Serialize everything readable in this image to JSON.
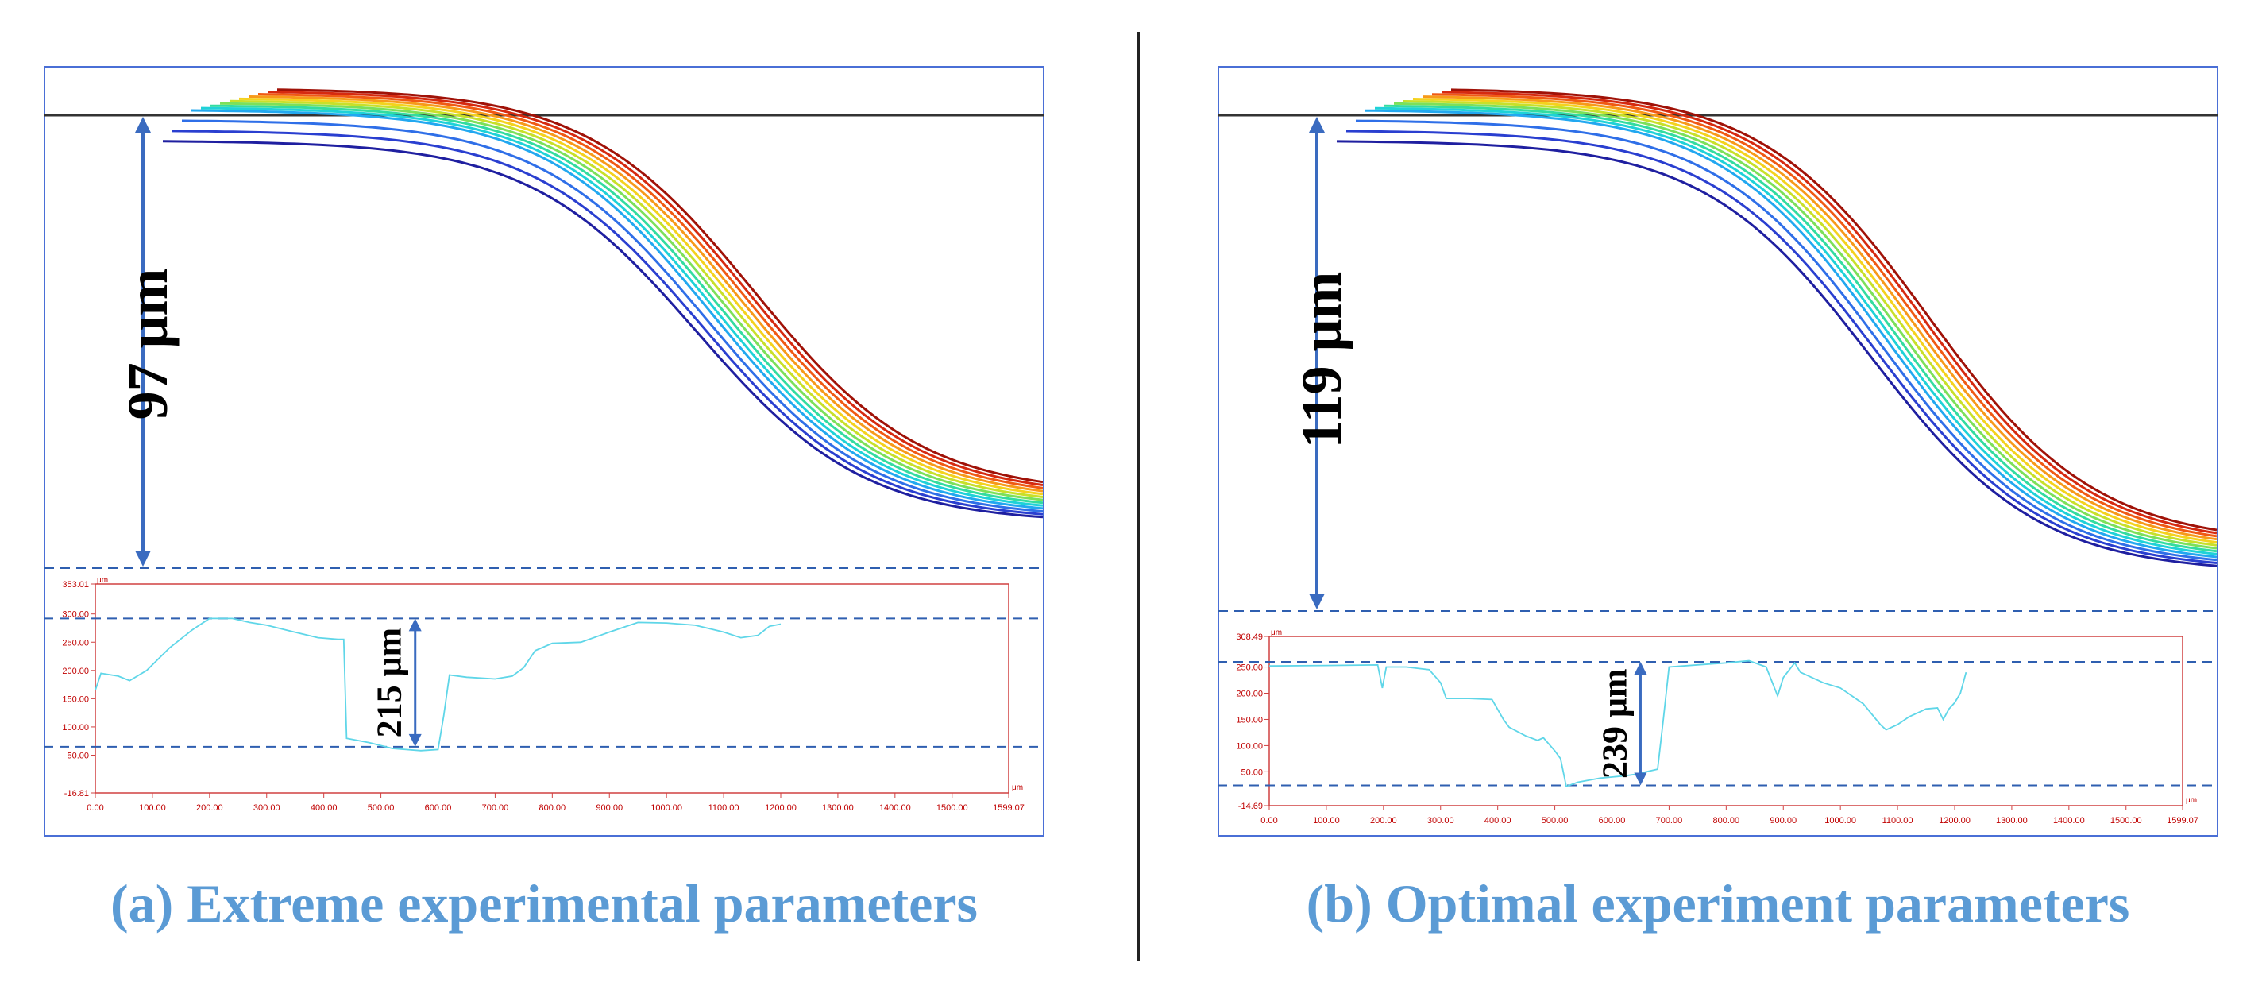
{
  "colors": {
    "frame": "#4a6fd6",
    "axis": "#d04040",
    "profile": "#5fd6e8",
    "dash": "#2f5fb0",
    "arrow": "#3a6bc0",
    "caption": "#5b9bd5"
  },
  "panels": [
    {
      "id": "a",
      "caption": "(a) Extreme experimental parameters",
      "depth_label": "97 μm",
      "depth_value": 97,
      "chart_data": {
        "type": "line",
        "xlabel": "μm",
        "ylabel": "μm",
        "xlim": [
          0,
          1599.07
        ],
        "ylim": [
          -16.81,
          353.01
        ],
        "x_ticks": [
          "0.00",
          "100.00",
          "200.00",
          "300.00",
          "400.00",
          "500.00",
          "600.00",
          "700.00",
          "800.00",
          "900.00",
          "1000.00",
          "1100.00",
          "1200.00",
          "1300.00",
          "1400.00",
          "1500.00",
          "1599.07"
        ],
        "y_ticks": [
          "353.01",
          "300.00",
          "250.00",
          "200.00",
          "150.00",
          "100.00",
          "50.00",
          "-16.81"
        ],
        "upper_dash": 292,
        "lower_dash": 65,
        "height_label": "215 μm",
        "height_value": 215,
        "profile": [
          [
            0,
            165
          ],
          [
            10,
            195
          ],
          [
            40,
            190
          ],
          [
            60,
            182
          ],
          [
            90,
            200
          ],
          [
            130,
            240
          ],
          [
            170,
            272
          ],
          [
            200,
            292
          ],
          [
            240,
            292
          ],
          [
            270,
            285
          ],
          [
            300,
            280
          ],
          [
            340,
            270
          ],
          [
            390,
            258
          ],
          [
            425,
            255
          ],
          [
            435,
            255
          ],
          [
            440,
            80
          ],
          [
            480,
            72
          ],
          [
            520,
            62
          ],
          [
            570,
            58
          ],
          [
            600,
            60
          ],
          [
            610,
            120
          ],
          [
            620,
            192
          ],
          [
            650,
            188
          ],
          [
            700,
            185
          ],
          [
            730,
            190
          ],
          [
            750,
            205
          ],
          [
            770,
            235
          ],
          [
            800,
            248
          ],
          [
            850,
            250
          ],
          [
            900,
            268
          ],
          [
            950,
            285
          ],
          [
            1000,
            284
          ],
          [
            1050,
            280
          ],
          [
            1100,
            268
          ],
          [
            1130,
            258
          ],
          [
            1160,
            262
          ],
          [
            1180,
            278
          ],
          [
            1200,
            282
          ]
        ]
      }
    },
    {
      "id": "b",
      "caption": "(b) Optimal experiment parameters",
      "depth_label": "119 μm",
      "depth_value": 119,
      "chart_data": {
        "type": "line",
        "xlabel": "μm",
        "ylabel": "μm",
        "xlim": [
          0,
          1599.07
        ],
        "ylim": [
          -14.69,
          308.49
        ],
        "x_ticks": [
          "0.00",
          "100.00",
          "200.00",
          "300.00",
          "400.00",
          "500.00",
          "600.00",
          "700.00",
          "800.00",
          "900.00",
          "1000.00",
          "1100.00",
          "1200.00",
          "1300.00",
          "1400.00",
          "1500.00",
          "1599.07"
        ],
        "y_ticks": [
          "308.49",
          "250.00",
          "200.00",
          "150.00",
          "100.00",
          "50.00",
          "-14.69"
        ],
        "upper_dash": 260,
        "lower_dash": 24,
        "height_label": "239 μm",
        "height_value": 239,
        "profile": [
          [
            0,
            252
          ],
          [
            100,
            253
          ],
          [
            190,
            254
          ],
          [
            198,
            210
          ],
          [
            205,
            250
          ],
          [
            240,
            250
          ],
          [
            280,
            245
          ],
          [
            300,
            220
          ],
          [
            310,
            190
          ],
          [
            350,
            190
          ],
          [
            390,
            188
          ],
          [
            410,
            150
          ],
          [
            420,
            135
          ],
          [
            450,
            118
          ],
          [
            470,
            110
          ],
          [
            480,
            115
          ],
          [
            500,
            90
          ],
          [
            510,
            75
          ],
          [
            520,
            22
          ],
          [
            540,
            30
          ],
          [
            580,
            38
          ],
          [
            620,
            42
          ],
          [
            640,
            45
          ],
          [
            660,
            50
          ],
          [
            680,
            55
          ],
          [
            690,
            150
          ],
          [
            700,
            250
          ],
          [
            760,
            255
          ],
          [
            800,
            258
          ],
          [
            840,
            262
          ],
          [
            870,
            250
          ],
          [
            890,
            195
          ],
          [
            900,
            230
          ],
          [
            920,
            258
          ],
          [
            930,
            240
          ],
          [
            950,
            230
          ],
          [
            970,
            220
          ],
          [
            1000,
            210
          ],
          [
            1040,
            180
          ],
          [
            1070,
            140
          ],
          [
            1080,
            130
          ],
          [
            1100,
            140
          ],
          [
            1120,
            155
          ],
          [
            1150,
            170
          ],
          [
            1170,
            172
          ],
          [
            1180,
            150
          ],
          [
            1190,
            170
          ],
          [
            1200,
            182
          ],
          [
            1210,
            200
          ],
          [
            1220,
            240
          ]
        ]
      }
    }
  ]
}
